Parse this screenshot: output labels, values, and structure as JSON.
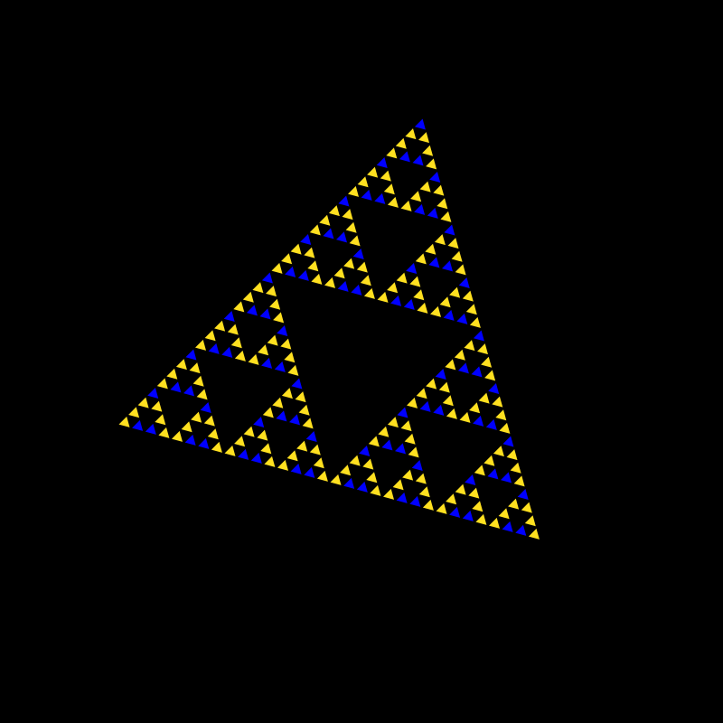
{
  "canvas": {
    "background": "#000000"
  },
  "fractal": {
    "kind": "sierpinski-triangle",
    "depth": 5,
    "tile_colors": [
      "#ffe020",
      "#0000ff"
    ]
  }
}
